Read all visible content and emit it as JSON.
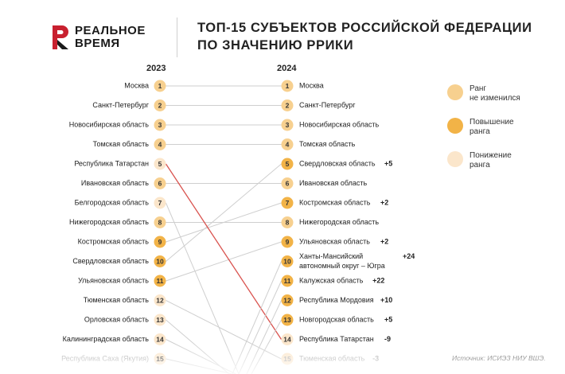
{
  "header": {
    "logo_line1": "РЕАЛЬНОЕ",
    "logo_line2": "ВРЕМЯ",
    "title_line1": "ТОП-15 СУБЪЕКТОВ РОССИЙСКОЙ ФЕДЕРАЦИИ",
    "title_line2": "ПО ЗНАЧЕНИЮ РРИКИ"
  },
  "colors": {
    "unchanged": "#f7d08f",
    "up": "#f2b347",
    "down": "#fbe6cb",
    "line": "#cfcfcf",
    "highlight": "#d9534f"
  },
  "legend": [
    {
      "key": "unchanged",
      "line1": "Ранг",
      "line2": "не изменился"
    },
    {
      "key": "up",
      "line1": "Повышение",
      "line2": "ранга"
    },
    {
      "key": "down",
      "line1": "Понижение",
      "line2": "ранга"
    }
  ],
  "source": "Источник: ИСИЭЗ НИУ ВШЭ.",
  "chart_data": {
    "type": "slope",
    "years": [
      "2023",
      "2024"
    ],
    "left": [
      {
        "rank": 1,
        "name": "Москва"
      },
      {
        "rank": 2,
        "name": "Санкт-Петербург"
      },
      {
        "rank": 3,
        "name": "Новосибирская область"
      },
      {
        "rank": 4,
        "name": "Томская область"
      },
      {
        "rank": 5,
        "name": "Республика Татарстан"
      },
      {
        "rank": 6,
        "name": "Ивановская область"
      },
      {
        "rank": 7,
        "name": "Белгородская область"
      },
      {
        "rank": 8,
        "name": "Нижегородская область"
      },
      {
        "rank": 9,
        "name": "Костромская область"
      },
      {
        "rank": 10,
        "name": "Свердловская область"
      },
      {
        "rank": 11,
        "name": "Ульяновская область"
      },
      {
        "rank": 12,
        "name": "Тюменская область"
      },
      {
        "rank": 13,
        "name": "Орловская область"
      },
      {
        "rank": 14,
        "name": "Калининградская область"
      },
      {
        "rank": 15,
        "name": "Республика Саха (Якутия)"
      }
    ],
    "right": [
      {
        "rank": 1,
        "name": "Москва",
        "change": "",
        "status": "unchanged",
        "from": 1
      },
      {
        "rank": 2,
        "name": "Санкт-Петербург",
        "change": "",
        "status": "unchanged",
        "from": 2
      },
      {
        "rank": 3,
        "name": "Новосибирская область",
        "change": "",
        "status": "unchanged",
        "from": 3
      },
      {
        "rank": 4,
        "name": "Томская область",
        "change": "",
        "status": "unchanged",
        "from": 4
      },
      {
        "rank": 5,
        "name": "Свердловская область",
        "change": "+5",
        "status": "up",
        "from": 10
      },
      {
        "rank": 6,
        "name": "Ивановская область",
        "change": "",
        "status": "unchanged",
        "from": 6
      },
      {
        "rank": 7,
        "name": "Костромская область",
        "change": "+2",
        "status": "up",
        "from": 9
      },
      {
        "rank": 8,
        "name": "Нижегородская область",
        "change": "",
        "status": "unchanged",
        "from": 8
      },
      {
        "rank": 9,
        "name": "Ульяновская область",
        "change": "+2",
        "status": "up",
        "from": 11
      },
      {
        "rank": 10,
        "name": "Ханты-Мансийский",
        "name2": "автономный округ – Югра",
        "change": "+24",
        "status": "up",
        "from": null
      },
      {
        "rank": 11,
        "name": "Калужская область",
        "change": "+22",
        "status": "up",
        "from": null
      },
      {
        "rank": 12,
        "name": "Республика Мордовия",
        "change": "+10",
        "status": "up",
        "from": null
      },
      {
        "rank": 13,
        "name": "Новгородская область",
        "change": "+5",
        "status": "up",
        "from": null
      },
      {
        "rank": 14,
        "name": "Республика Татарстан",
        "change": "-9",
        "status": "down",
        "from": 5
      },
      {
        "rank": 15,
        "name": "Тюменская область",
        "change": "-3",
        "status": "down",
        "from": 12
      }
    ],
    "dropped": [
      7,
      13,
      14,
      15
    ]
  }
}
